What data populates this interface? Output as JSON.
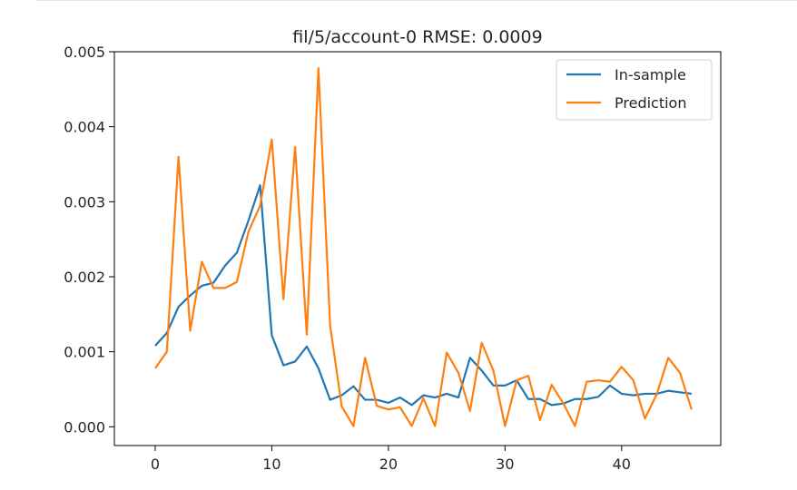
{
  "chart_data": {
    "type": "line",
    "title": "fil/5/account-0 RMSE: 0.0009",
    "xlabel": "",
    "ylabel": "",
    "xlim": [
      -3.5,
      48.5
    ],
    "ylim": [
      -0.00025,
      0.005
    ],
    "xticks": [
      0,
      10,
      20,
      30,
      40
    ],
    "xtick_labels": [
      "0",
      "10",
      "20",
      "30",
      "40"
    ],
    "yticks": [
      0.0,
      0.001,
      0.002,
      0.003,
      0.004,
      0.005
    ],
    "ytick_labels": [
      "0.000",
      "0.001",
      "0.002",
      "0.003",
      "0.004",
      "0.005"
    ],
    "grid": false,
    "legend_position": "top-right",
    "x": [
      0,
      1,
      2,
      3,
      4,
      5,
      6,
      7,
      8,
      9,
      10,
      11,
      12,
      13,
      14,
      15,
      16,
      17,
      18,
      19,
      20,
      21,
      22,
      23,
      24,
      25,
      26,
      27,
      28,
      29,
      30,
      31,
      32,
      33,
      34,
      35,
      36,
      37,
      38,
      39,
      40,
      41,
      42,
      43,
      44,
      45,
      46
    ],
    "series": [
      {
        "name": "In-sample",
        "color": "#1f77b4",
        "values": [
          0.00108,
          0.00125,
          0.0016,
          0.00175,
          0.00188,
          0.00192,
          0.00215,
          0.00232,
          0.00275,
          0.00322,
          0.00122,
          0.00082,
          0.00087,
          0.00107,
          0.00078,
          0.00036,
          0.00042,
          0.00054,
          0.00036,
          0.00036,
          0.00032,
          0.00039,
          0.00029,
          0.00042,
          0.00039,
          0.00044,
          0.00039,
          0.00092,
          0.00075,
          0.00055,
          0.00055,
          0.00062,
          0.00037,
          0.00037,
          0.00029,
          0.00031,
          0.00037,
          0.00037,
          0.0004,
          0.00055,
          0.00044,
          0.00042,
          0.00044,
          0.00044,
          0.00048,
          0.00046,
          0.00044
        ]
      },
      {
        "name": "Prediction",
        "color": "#ff7f0e",
        "values": [
          0.00078,
          0.001,
          0.0036,
          0.00128,
          0.0022,
          0.00185,
          0.00185,
          0.00193,
          0.0026,
          0.00295,
          0.00383,
          0.0017,
          0.00373,
          0.00123,
          0.00478,
          0.00135,
          0.00027,
          1e-05,
          0.00092,
          0.00028,
          0.00023,
          0.00026,
          1e-05,
          0.00038,
          1e-05,
          0.00099,
          0.00072,
          0.00021,
          0.00112,
          0.00075,
          1e-05,
          0.00062,
          0.00068,
          9e-05,
          0.00056,
          0.00031,
          1e-05,
          0.0006,
          0.00062,
          0.0006,
          0.0008,
          0.00062,
          0.00011,
          0.00043,
          0.00092,
          0.00072,
          0.00023
        ]
      }
    ]
  }
}
